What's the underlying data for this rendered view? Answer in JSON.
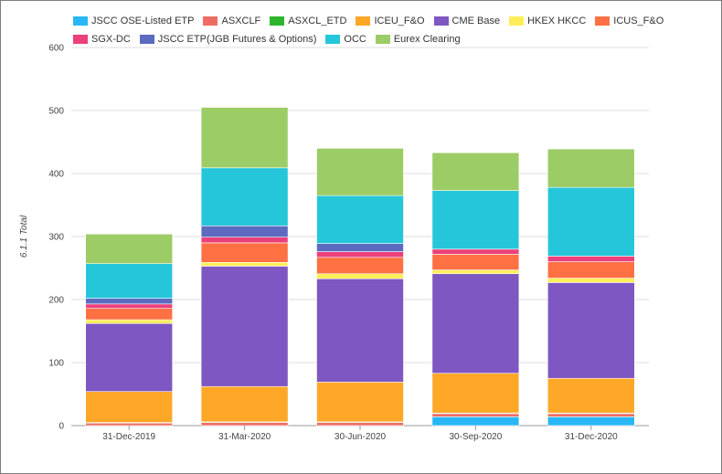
{
  "chart_data": {
    "type": "bar",
    "stacked": true,
    "categories": [
      "31-Dec-2019",
      "31-Mar-2020",
      "30-Jun-2020",
      "30-Sep-2020",
      "31-Dec-2020"
    ],
    "ylabel": "6.1.1 Total",
    "xlabel": "",
    "ylim": [
      0,
      600
    ],
    "yticks": [
      "0",
      "100",
      "200",
      "300",
      "400",
      "500",
      "600"
    ],
    "grid": true,
    "legend_position": "top",
    "series": [
      {
        "name": "JSCC OSE-Listed ETP",
        "color": "#29b6f6",
        "values": [
          0,
          0,
          0,
          14,
          14
        ]
      },
      {
        "name": "ASXCLF",
        "color": "#ef6c63",
        "values": [
          4,
          5,
          5,
          5,
          5
        ]
      },
      {
        "name": "ASXCL_ETD",
        "color": "#2db52d",
        "values": [
          1,
          1,
          1,
          1,
          1
        ]
      },
      {
        "name": "ICEU_F&O",
        "color": "#ffa726",
        "values": [
          49,
          56,
          63,
          63,
          55
        ]
      },
      {
        "name": "CME Base",
        "color": "#7e57c2",
        "values": [
          108,
          191,
          164,
          158,
          152
        ]
      },
      {
        "name": "HKEX HKCC",
        "color": "#ffee58",
        "values": [
          6,
          6,
          8,
          6,
          7
        ]
      },
      {
        "name": "ICUS_F&O",
        "color": "#ff7043",
        "values": [
          18,
          31,
          26,
          25,
          26
        ]
      },
      {
        "name": "SGX-DC",
        "color": "#ec407a",
        "values": [
          7,
          9,
          9,
          8,
          9
        ]
      },
      {
        "name": "JSCC ETP(JGB Futures & Options)",
        "color": "#5c6bc0",
        "values": [
          9,
          18,
          13,
          0,
          0
        ]
      },
      {
        "name": "OCC",
        "color": "#26c6da",
        "values": [
          55,
          92,
          76,
          93,
          109
        ]
      },
      {
        "name": "Eurex Clearing",
        "color": "#9ccc65",
        "values": [
          47,
          96,
          75,
          60,
          61
        ]
      }
    ]
  }
}
